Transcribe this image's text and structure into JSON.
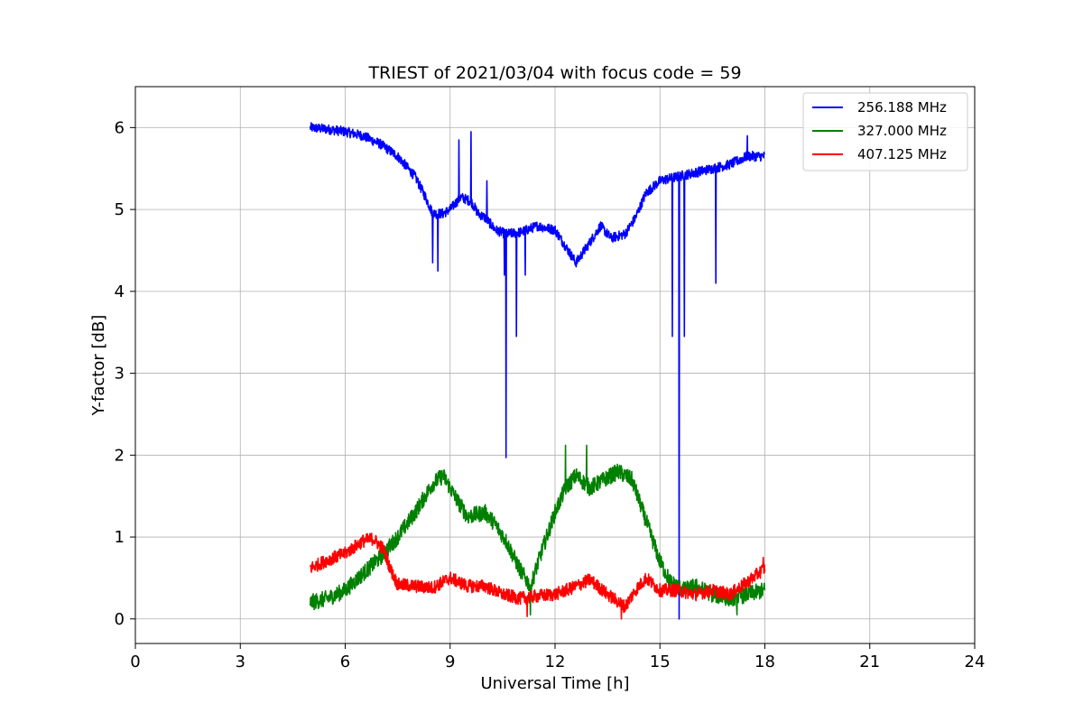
{
  "chart_data": {
    "type": "line",
    "title": "TRIEST of 2021/03/04 with focus code = 59",
    "xlabel": "Universal Time [h]",
    "ylabel": "Y-factor [dB]",
    "xlim": [
      0,
      24
    ],
    "ylim": [
      -0.3,
      6.5
    ],
    "xticks": [
      0,
      3,
      6,
      9,
      12,
      15,
      18,
      21,
      24
    ],
    "yticks": [
      0,
      1,
      2,
      3,
      4,
      5,
      6
    ],
    "grid": true,
    "legend_position": "top-right",
    "series": [
      {
        "name": "256.188 MHz",
        "color": "#0000ff",
        "noise": 0.06,
        "points": [
          [
            5.0,
            6.0
          ],
          [
            5.5,
            5.98
          ],
          [
            6.0,
            5.95
          ],
          [
            6.5,
            5.9
          ],
          [
            7.0,
            5.8
          ],
          [
            7.5,
            5.65
          ],
          [
            8.0,
            5.4
          ],
          [
            8.3,
            5.15
          ],
          [
            8.5,
            4.95
          ],
          [
            8.8,
            4.95
          ],
          [
            9.0,
            5.0
          ],
          [
            9.3,
            5.15
          ],
          [
            9.6,
            5.1
          ],
          [
            9.8,
            4.95
          ],
          [
            10.0,
            4.9
          ],
          [
            10.3,
            4.75
          ],
          [
            10.6,
            4.7
          ],
          [
            11.0,
            4.72
          ],
          [
            11.5,
            4.8
          ],
          [
            12.0,
            4.75
          ],
          [
            12.3,
            4.55
          ],
          [
            12.6,
            4.35
          ],
          [
            13.0,
            4.6
          ],
          [
            13.3,
            4.8
          ],
          [
            13.6,
            4.65
          ],
          [
            14.0,
            4.7
          ],
          [
            14.3,
            4.9
          ],
          [
            14.6,
            5.2
          ],
          [
            15.0,
            5.35
          ],
          [
            15.5,
            5.4
          ],
          [
            16.0,
            5.45
          ],
          [
            16.5,
            5.5
          ],
          [
            17.0,
            5.55
          ],
          [
            17.5,
            5.65
          ],
          [
            18.0,
            5.65
          ]
        ],
        "spikes": [
          [
            8.5,
            4.35
          ],
          [
            8.65,
            4.25
          ],
          [
            9.25,
            5.85
          ],
          [
            9.6,
            5.95
          ],
          [
            10.05,
            5.35
          ],
          [
            10.55,
            4.2
          ],
          [
            10.6,
            1.97
          ],
          [
            10.9,
            3.45
          ],
          [
            11.15,
            4.2
          ],
          [
            15.35,
            3.45
          ],
          [
            15.55,
            0.0
          ],
          [
            15.7,
            3.45
          ],
          [
            16.6,
            4.1
          ],
          [
            17.5,
            5.9
          ]
        ]
      },
      {
        "name": "327.000 MHz",
        "color": "#008000",
        "noise": 0.1,
        "points": [
          [
            5.0,
            0.2
          ],
          [
            5.5,
            0.25
          ],
          [
            6.0,
            0.35
          ],
          [
            6.5,
            0.55
          ],
          [
            7.0,
            0.75
          ],
          [
            7.5,
            1.0
          ],
          [
            8.0,
            1.3
          ],
          [
            8.5,
            1.65
          ],
          [
            8.8,
            1.75
          ],
          [
            9.2,
            1.45
          ],
          [
            9.5,
            1.25
          ],
          [
            10.0,
            1.3
          ],
          [
            10.3,
            1.15
          ],
          [
            10.6,
            0.95
          ],
          [
            11.0,
            0.6
          ],
          [
            11.3,
            0.4
          ],
          [
            11.6,
            0.8
          ],
          [
            12.0,
            1.3
          ],
          [
            12.3,
            1.6
          ],
          [
            12.6,
            1.75
          ],
          [
            13.0,
            1.6
          ],
          [
            13.4,
            1.7
          ],
          [
            13.8,
            1.8
          ],
          [
            14.2,
            1.7
          ],
          [
            14.6,
            1.2
          ],
          [
            15.0,
            0.7
          ],
          [
            15.3,
            0.45
          ],
          [
            15.7,
            0.35
          ],
          [
            16.0,
            0.4
          ],
          [
            16.5,
            0.3
          ],
          [
            17.0,
            0.25
          ],
          [
            17.5,
            0.3
          ],
          [
            18.0,
            0.35
          ]
        ],
        "spikes": [
          [
            12.3,
            2.12
          ],
          [
            12.9,
            2.12
          ],
          [
            11.3,
            0.05
          ],
          [
            17.2,
            0.05
          ]
        ]
      },
      {
        "name": "407.125 MHz",
        "color": "#ff0000",
        "noise": 0.08,
        "points": [
          [
            5.0,
            0.62
          ],
          [
            5.5,
            0.72
          ],
          [
            6.0,
            0.8
          ],
          [
            6.5,
            0.95
          ],
          [
            6.8,
            0.98
          ],
          [
            7.1,
            0.85
          ],
          [
            7.3,
            0.6
          ],
          [
            7.5,
            0.42
          ],
          [
            8.0,
            0.4
          ],
          [
            8.5,
            0.38
          ],
          [
            9.0,
            0.5
          ],
          [
            9.5,
            0.4
          ],
          [
            10.0,
            0.4
          ],
          [
            10.5,
            0.3
          ],
          [
            11.0,
            0.25
          ],
          [
            11.5,
            0.28
          ],
          [
            12.0,
            0.3
          ],
          [
            12.5,
            0.38
          ],
          [
            13.0,
            0.48
          ],
          [
            13.5,
            0.3
          ],
          [
            14.0,
            0.15
          ],
          [
            14.3,
            0.35
          ],
          [
            14.6,
            0.5
          ],
          [
            15.0,
            0.35
          ],
          [
            15.5,
            0.35
          ],
          [
            16.0,
            0.3
          ],
          [
            16.5,
            0.35
          ],
          [
            17.0,
            0.3
          ],
          [
            17.5,
            0.45
          ],
          [
            18.0,
            0.62
          ]
        ],
        "spikes": [
          [
            17.95,
            0.75
          ],
          [
            11.2,
            0.03
          ],
          [
            13.9,
            0.0
          ]
        ]
      }
    ]
  }
}
